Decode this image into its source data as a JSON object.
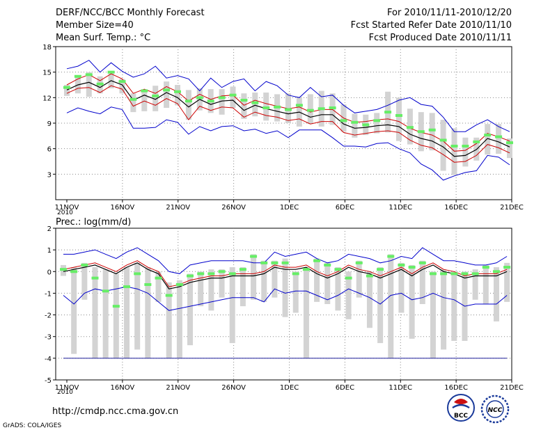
{
  "header": {
    "title": "DERF/NCC/BCC Monthly Forecast",
    "member_size": "Member Size=40",
    "variable": "Mean Surf. Temp.: °C",
    "for_range": "For 2010/11/11-2010/12/20",
    "fcst_started": "Fcst Started Refer Date 2010/11/10",
    "fcst_produced": "Fcst Produced Date 2010/11/11"
  },
  "footer": {
    "url": "http://cmdp.ncc.cma.gov.cn",
    "grads": "GrADS: COLA/IGES",
    "logo_bcc": "BCC",
    "logo_ncc": "NCC"
  },
  "colors": {
    "max": "#0000cc",
    "mean_upper": "#cc0000",
    "mean": "#000000",
    "box": "#d3d3d3",
    "obs": "#66ee66",
    "grid": "#888888"
  },
  "chart_data": [
    {
      "type": "line",
      "title": "Mean Surf. Temp.: °C",
      "x_labels": [
        "11NOV",
        "16NOV",
        "21NOV",
        "26NOV",
        "1DEC",
        "6DEC",
        "11DEC",
        "16DEC",
        "21DEC"
      ],
      "x_label_days": [
        1,
        6,
        11,
        16,
        21,
        26,
        31,
        36,
        41
      ],
      "year_label": "2010",
      "ylim": [
        0,
        18
      ],
      "y_ticks": [
        "18",
        "15",
        "12",
        "9",
        "6",
        "3"
      ],
      "y_tick_values": [
        18,
        15,
        12,
        9,
        6,
        3
      ],
      "series": [
        {
          "name": "max",
          "values": [
            15.4,
            15.7,
            16.4,
            15.0,
            16.1,
            15.1,
            14.4,
            14.8,
            15.7,
            14.3,
            14.6,
            14.2,
            12.8,
            14.3,
            13.2,
            13.9,
            14.2,
            12.8,
            13.9,
            13.4,
            12.3,
            12.0,
            13.2,
            12.1,
            12.3,
            11.1,
            10.2,
            10.4,
            10.6,
            11.1,
            11.7,
            12.0,
            11.2,
            11.0,
            9.7,
            8.0,
            8.0,
            8.8,
            9.4,
            8.6,
            8.0
          ]
        },
        {
          "name": "upper",
          "values": [
            13.5,
            14.2,
            14.7,
            14.0,
            14.8,
            14.2,
            12.5,
            13.0,
            12.5,
            13.3,
            12.7,
            11.6,
            12.4,
            11.8,
            12.2,
            12.3,
            11.1,
            11.7,
            11.3,
            11.0,
            10.7,
            10.9,
            10.3,
            10.6,
            10.6,
            9.6,
            9.1,
            9.2,
            9.4,
            9.5,
            9.2,
            8.4,
            7.9,
            7.6,
            6.9,
            5.7,
            5.8,
            6.6,
            7.8,
            7.4,
            6.9
          ]
        },
        {
          "name": "mean",
          "values": [
            12.9,
            13.5,
            13.8,
            13.2,
            14.0,
            13.5,
            11.7,
            12.3,
            11.8,
            12.6,
            12.0,
            10.9,
            11.8,
            11.2,
            11.6,
            11.7,
            10.5,
            11.1,
            10.7,
            10.4,
            10.1,
            10.3,
            9.7,
            10.0,
            10.0,
            8.9,
            8.4,
            8.5,
            8.7,
            8.8,
            8.6,
            7.7,
            7.2,
            6.9,
            6.2,
            5.1,
            5.2,
            5.9,
            7.2,
            6.8,
            6.2
          ]
        },
        {
          "name": "lower",
          "values": [
            12.5,
            13.1,
            13.2,
            12.6,
            13.4,
            13.0,
            11.0,
            11.6,
            11.1,
            11.9,
            11.3,
            9.4,
            11.0,
            10.5,
            10.9,
            10.8,
            9.7,
            10.3,
            9.9,
            9.7,
            9.3,
            9.5,
            8.9,
            9.2,
            9.2,
            7.9,
            7.6,
            7.8,
            8.0,
            8.1,
            7.9,
            7.0,
            6.4,
            6.1,
            5.3,
            4.4,
            4.5,
            5.2,
            6.5,
            6.1,
            5.5
          ]
        },
        {
          "name": "min",
          "values": [
            10.2,
            10.8,
            10.4,
            10.1,
            10.9,
            10.6,
            8.4,
            8.4,
            8.5,
            9.4,
            9.1,
            7.7,
            8.6,
            8.1,
            8.6,
            8.7,
            8.1,
            8.3,
            7.8,
            8.1,
            7.3,
            8.2,
            8.2,
            8.2,
            7.3,
            6.3,
            6.3,
            6.2,
            6.6,
            6.7,
            6.0,
            5.5,
            4.2,
            3.5,
            2.3,
            2.8,
            3.2,
            3.4,
            5.2,
            5.0,
            4.1
          ]
        },
        {
          "name": "obs",
          "values": [
            13.2,
            14.5,
            14.7,
            13.6,
            15.0,
            13.9,
            11.8,
            12.8,
            12.2,
            12.9,
            12.7,
            11.6,
            12.0,
            11.6,
            12.0,
            12.3,
            11.7,
            11.4,
            10.8,
            10.9,
            10.6,
            11.1,
            10.5,
            10.7,
            10.8,
            9.3,
            9.1,
            8.8,
            9.3,
            10.3,
            9.9,
            8.5,
            8.0,
            8.2,
            7.0,
            6.3,
            6.3,
            6.8,
            7.6,
            7.4,
            6.7
          ]
        }
      ],
      "box_high": [
        13.5,
        14.5,
        15.0,
        14.5,
        15.0,
        14.2,
        12.5,
        13.0,
        13.4,
        13.9,
        13.5,
        12.9,
        13.1,
        13.0,
        13.0,
        13.3,
        12.5,
        12.6,
        12.6,
        12.4,
        12.5,
        12.1,
        12.4,
        12.8,
        12.5,
        11.2,
        10.1,
        10.0,
        10.2,
        12.7,
        12.0,
        10.7,
        10.3,
        10.2,
        9.4,
        8.4,
        7.3,
        7.3,
        8.9,
        8.9,
        7.2
      ],
      "box_low": [
        12.2,
        12.5,
        12.1,
        12.5,
        13.1,
        12.5,
        10.3,
        10.4,
        10.4,
        10.8,
        11.1,
        9.4,
        10.5,
        10.2,
        10.0,
        10.8,
        9.5,
        9.8,
        9.3,
        9.2,
        9.0,
        8.6,
        8.9,
        8.6,
        8.8,
        8.0,
        7.3,
        7.6,
        7.8,
        7.9,
        6.9,
        6.5,
        5.7,
        5.8,
        3.4,
        2.9,
        3.9,
        4.6,
        5.3,
        5.4,
        4.9
      ]
    },
    {
      "type": "line",
      "title": "Prec.: log(mm/d)",
      "x_labels": [
        "11NOV",
        "16NOV",
        "21NOV",
        "26NOV",
        "1DEC",
        "6DEC",
        "11DEC",
        "16DEC",
        "21DEC"
      ],
      "x_label_days": [
        1,
        6,
        11,
        16,
        21,
        26,
        31,
        36,
        41
      ],
      "year_label": "2010",
      "ylim": [
        -5,
        2
      ],
      "y_ticks": [
        "2",
        "1",
        "0",
        "-1",
        "-2",
        "-3",
        "-4",
        "-5"
      ],
      "y_tick_values": [
        2,
        1,
        0,
        -1,
        -2,
        -3,
        -4,
        -5
      ],
      "series": [
        {
          "name": "max",
          "values": [
            0.8,
            0.8,
            0.9,
            1.0,
            0.8,
            0.6,
            0.9,
            1.1,
            0.8,
            0.5,
            0.0,
            -0.1,
            0.3,
            0.4,
            0.5,
            0.5,
            0.5,
            0.5,
            0.4,
            0.4,
            0.9,
            0.7,
            0.8,
            0.9,
            0.6,
            0.4,
            0.5,
            0.8,
            0.7,
            0.6,
            0.4,
            0.5,
            0.7,
            0.6,
            1.1,
            0.8,
            0.5,
            0.5,
            0.4,
            0.3,
            0.3,
            0.4,
            0.7
          ]
        },
        {
          "name": "mean_upper",
          "values": [
            0.1,
            0.2,
            0.3,
            0.4,
            0.2,
            0.0,
            0.3,
            0.5,
            0.2,
            0.0,
            -0.7,
            -0.6,
            -0.4,
            -0.3,
            -0.2,
            -0.2,
            -0.1,
            -0.1,
            -0.1,
            0.0,
            0.3,
            0.2,
            0.2,
            0.3,
            0.0,
            -0.2,
            0.0,
            0.3,
            0.1,
            0.0,
            -0.2,
            0.0,
            0.2,
            -0.1,
            0.2,
            0.4,
            0.1,
            0.0,
            -0.2,
            -0.1,
            -0.1,
            -0.1,
            0.1
          ]
        },
        {
          "name": "mean",
          "values": [
            0.0,
            0.1,
            0.2,
            0.3,
            0.1,
            -0.1,
            0.2,
            0.4,
            0.1,
            -0.1,
            -0.8,
            -0.7,
            -0.5,
            -0.4,
            -0.3,
            -0.3,
            -0.2,
            -0.2,
            -0.2,
            -0.1,
            0.2,
            0.1,
            0.1,
            0.2,
            -0.1,
            -0.3,
            -0.1,
            0.2,
            0.0,
            -0.1,
            -0.3,
            -0.1,
            0.1,
            -0.2,
            0.1,
            0.3,
            0.0,
            -0.1,
            -0.3,
            -0.2,
            -0.2,
            -0.2,
            0.0
          ]
        },
        {
          "name": "min",
          "values": [
            -1.1,
            -1.5,
            -1.0,
            -0.8,
            -0.9,
            -0.8,
            -0.7,
            -0.8,
            -1.0,
            -1.4,
            -1.8,
            -1.7,
            -1.6,
            -1.5,
            -1.4,
            -1.3,
            -1.2,
            -1.2,
            -1.2,
            -1.4,
            -0.8,
            -1.0,
            -0.9,
            -0.9,
            -1.1,
            -1.3,
            -1.1,
            -0.8,
            -1.0,
            -1.2,
            -1.5,
            -1.1,
            -1.0,
            -1.3,
            -1.2,
            -1.0,
            -1.2,
            -1.3,
            -1.6,
            -1.5,
            -1.5,
            -1.5,
            -1.1
          ]
        },
        {
          "name": "floor",
          "values": [
            -4,
            -4,
            -4,
            -4,
            -4,
            -4,
            -4,
            -4,
            -4,
            -4,
            -4,
            -4,
            -4,
            -4,
            -4,
            -4,
            -4,
            -4,
            -4,
            -4,
            -4,
            -4,
            -4,
            -4,
            -4,
            -4,
            -4,
            -4,
            -4,
            -4,
            -4,
            -4,
            -4,
            -4,
            -4,
            -4,
            -4,
            -4,
            -4,
            -4,
            -4,
            -4,
            -4
          ]
        },
        {
          "name": "obs",
          "values": [
            0.1,
            0.0,
            0.3,
            -0.3,
            -0.9,
            -1.6,
            -0.7,
            -0.1,
            -0.6,
            -0.3,
            -1.1,
            -0.6,
            -0.2,
            -0.1,
            -0.1,
            0.0,
            -0.1,
            0.1,
            0.7,
            0.4,
            0.4,
            0.4,
            -0.1,
            0.1,
            0.5,
            0.3,
            0.1,
            -0.3,
            0.4,
            -0.2,
            0.1,
            0.7,
            0.3,
            0.2,
            0.4,
            -0.1,
            -0.1,
            -0.1,
            -0.1,
            -0.1,
            0.2,
            0.0,
            0.2
          ]
        }
      ],
      "box_high": [
        0.3,
        0.2,
        0.4,
        0.2,
        0.1,
        -0.1,
        0.2,
        0.4,
        0.2,
        0.0,
        -0.5,
        -0.4,
        -0.1,
        0.0,
        0.1,
        0.1,
        0.2,
        0.2,
        0.8,
        0.5,
        0.5,
        0.6,
        0.0,
        0.2,
        0.6,
        0.4,
        0.2,
        0.0,
        0.5,
        0.0,
        0.2,
        0.8,
        0.4,
        0.3,
        0.5,
        0.0,
        0.1,
        0.0,
        0.0,
        0.1,
        0.3,
        0.2,
        0.4
      ],
      "box_low": [
        -0.2,
        -3.8,
        -1.3,
        -4.0,
        -4.0,
        -4.0,
        -4.0,
        -3.6,
        -4.0,
        -1.4,
        -4.0,
        -4.0,
        -3.4,
        -1.6,
        -1.8,
        -1.2,
        -3.3,
        -1.6,
        -1.3,
        -1.4,
        -1.2,
        -2.1,
        -1.9,
        -4.0,
        -1.4,
        -1.5,
        -1.8,
        -2.2,
        -1.2,
        -2.6,
        -3.3,
        -4.0,
        -1.9,
        -3.1,
        -1.5,
        -4.0,
        -3.6,
        -3.2,
        -3.2,
        -1.3,
        -1.5,
        -2.3,
        -1.4
      ]
    }
  ]
}
